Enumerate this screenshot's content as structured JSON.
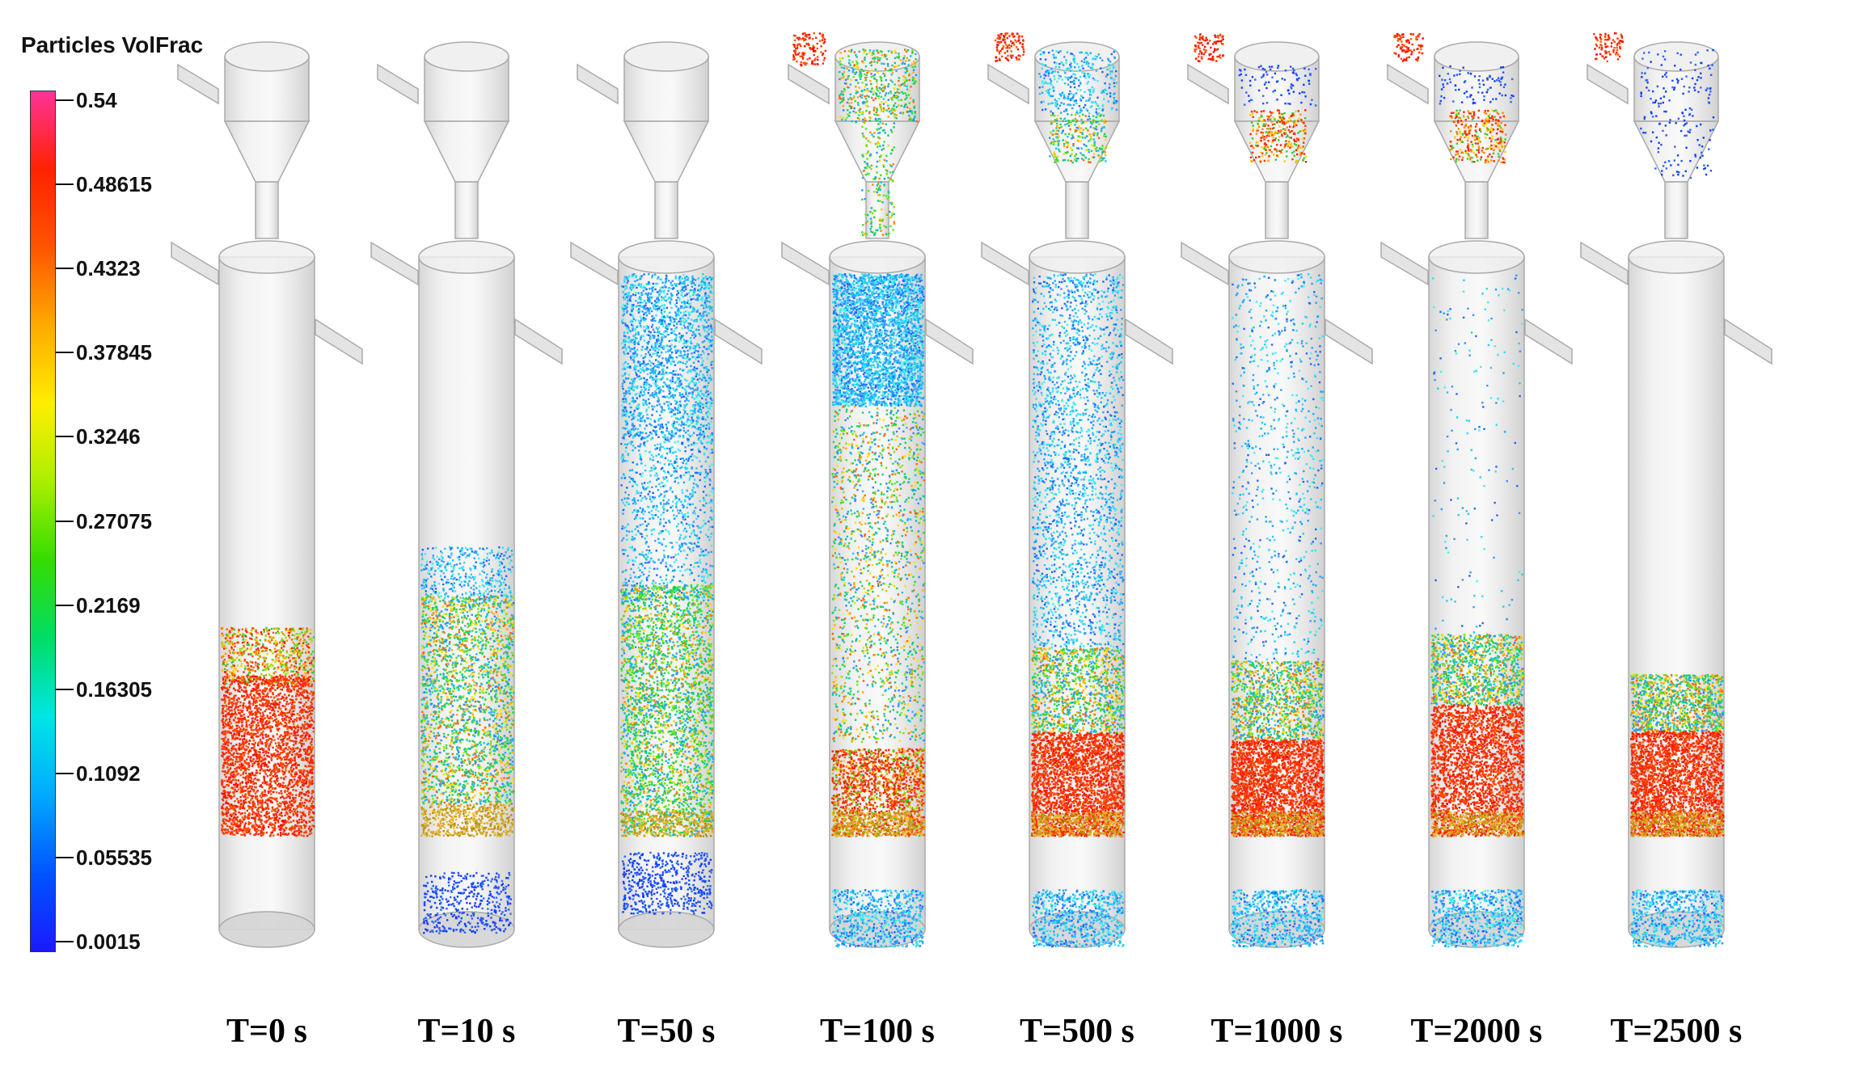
{
  "legend": {
    "title": "Particles VolFrac",
    "ticks": [
      "0.54",
      "0.48615",
      "0.4323",
      "0.37845",
      "0.3246",
      "0.27075",
      "0.2169",
      "0.16305",
      "0.1092",
      "0.05535",
      "0.0015"
    ],
    "colormap": [
      "#1a1aff",
      "#0055ff",
      "#00aaff",
      "#00e5e5",
      "#00dd66",
      "#33dd00",
      "#aaee00",
      "#ffee00",
      "#ffaa00",
      "#ff5500",
      "#ff2200",
      "#ff3399"
    ]
  },
  "columns": [
    {
      "label": "T=0 s",
      "lower_bed": {
        "top": 0.55,
        "bottom": 0.86,
        "profile": "dense"
      },
      "feeder_particles": "none",
      "freeboard_density": 0.0,
      "bottom_scatter": 0
    },
    {
      "label": "T=10 s",
      "lower_bed": {
        "top": 0.43,
        "bottom": 0.86,
        "profile": "expanding"
      },
      "feeder_particles": "none",
      "freeboard_density": 0.0,
      "bottom_scatter": 1
    },
    {
      "label": "T=50 s",
      "lower_bed": {
        "top": 0.27,
        "bottom": 0.86,
        "profile": "fluidized"
      },
      "feeder_particles": "none",
      "freeboard_density": 0.6,
      "bottom_scatter": 2
    },
    {
      "label": "T=100 s",
      "lower_bed": {
        "top": 0.22,
        "bottom": 0.86,
        "profile": "circulating"
      },
      "feeder_particles": "dispersed",
      "freeboard_density": 1.0,
      "bottom_scatter": 3
    },
    {
      "label": "T=500 s",
      "lower_bed": {
        "top": 0.58,
        "bottom": 0.86,
        "profile": "settling"
      },
      "feeder_particles": "accumulating",
      "freeboard_density": 0.7,
      "bottom_scatter": 3
    },
    {
      "label": "T=1000 s",
      "lower_bed": {
        "top": 0.6,
        "bottom": 0.86,
        "profile": "settling"
      },
      "feeder_particles": "cone",
      "freeboard_density": 0.25,
      "bottom_scatter": 3
    },
    {
      "label": "T=2000 s",
      "lower_bed": {
        "top": 0.56,
        "bottom": 0.86,
        "profile": "settled"
      },
      "feeder_particles": "cone",
      "freeboard_density": 0.05,
      "bottom_scatter": 3
    },
    {
      "label": "T=2500 s",
      "lower_bed": {
        "top": 0.62,
        "bottom": 0.86,
        "profile": "settled"
      },
      "feeder_particles": "sparse",
      "freeboard_density": 0.0,
      "bottom_scatter": 3
    }
  ]
}
